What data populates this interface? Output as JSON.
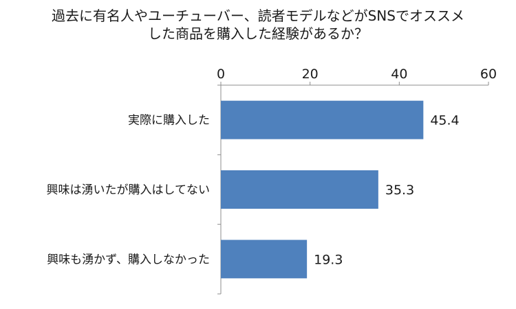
{
  "chart_data": {
    "type": "bar",
    "orientation": "horizontal",
    "title_lines": [
      "過去に有名人やユーチューバー、読者モデルなどがSNSでオススメ",
      "した商品を購入した経験があるか？"
    ],
    "categories": [
      "実際に購入した",
      "興味は湧いたが購入はしてない",
      "興味も湧かず、購入しなかった"
    ],
    "values": [
      45.4,
      35.3,
      19.3
    ],
    "data_labels": [
      "45.4",
      "35.3",
      "19.3"
    ],
    "xlim": [
      0,
      60
    ],
    "x_ticks": [
      0,
      20,
      40,
      60
    ],
    "x_tick_labels": [
      "0",
      "20",
      "40",
      "60"
    ],
    "x_axis_position": "top",
    "grid": false,
    "legend": "none",
    "bar_color": "#4f81bd"
  }
}
